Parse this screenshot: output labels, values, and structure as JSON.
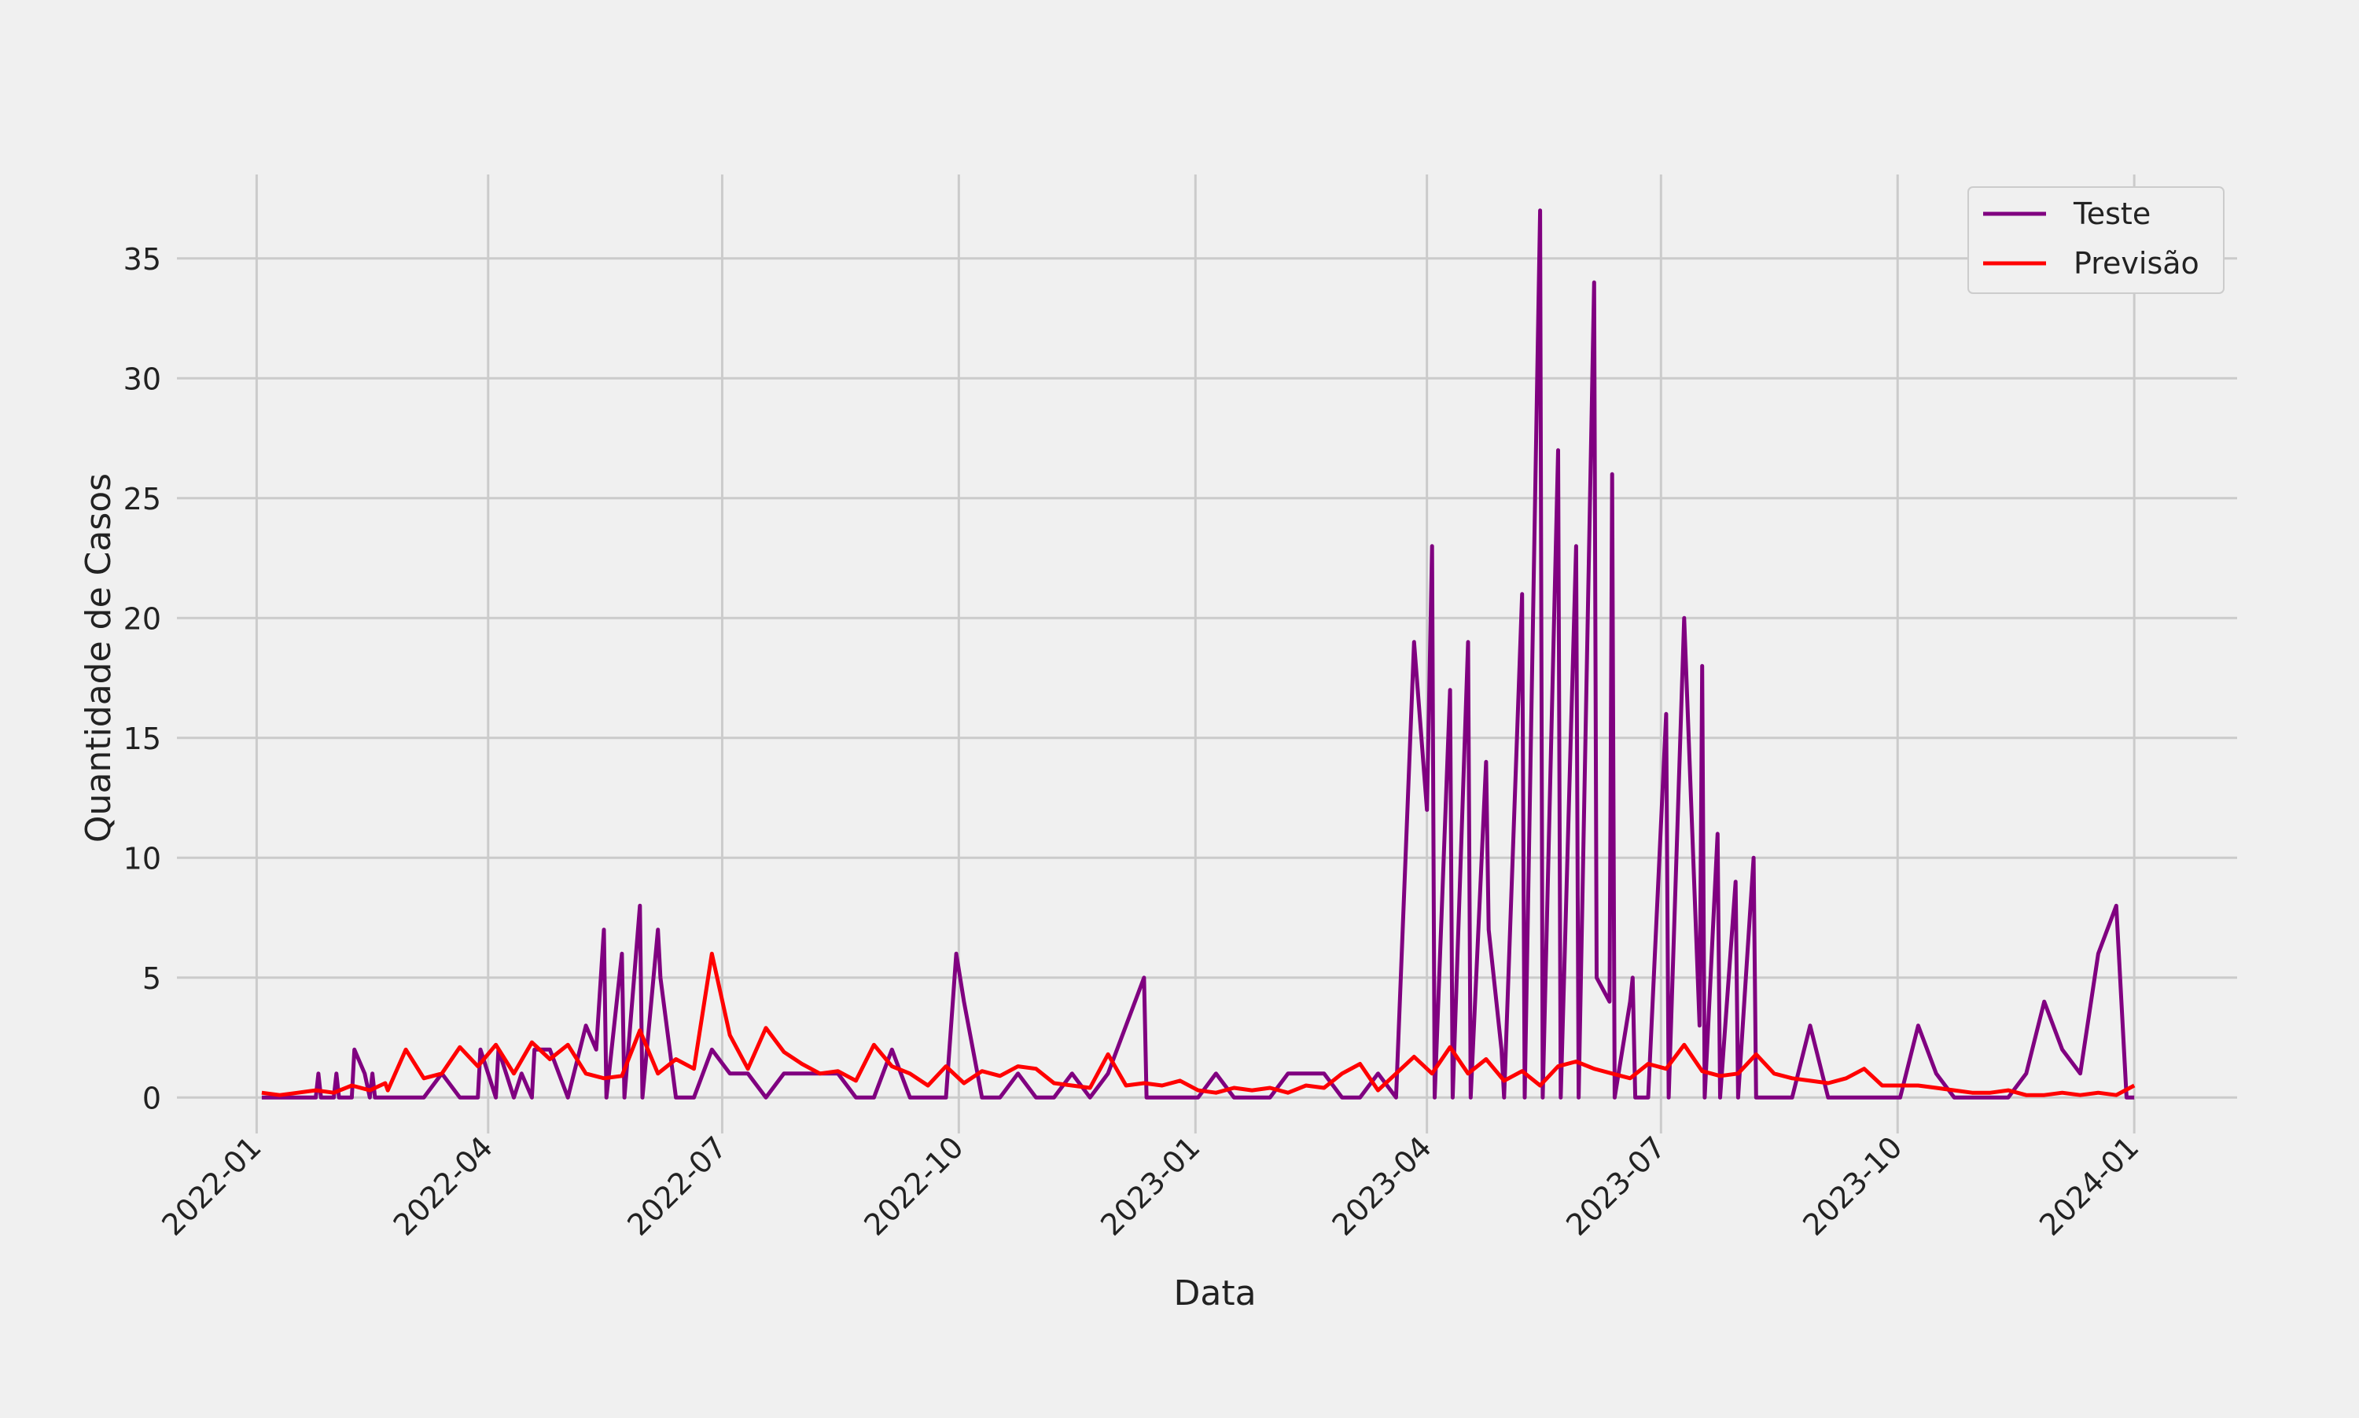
{
  "chart_data": {
    "type": "line",
    "title": "",
    "xlabel": "Data",
    "ylabel": "Quantidade de Casos",
    "x_ticks": [
      "2022-01",
      "2022-04",
      "2022-07",
      "2022-10",
      "2023-01",
      "2023-04",
      "2023-07",
      "2023-10",
      "2024-01"
    ],
    "y_ticks": [
      "0",
      "5",
      "10",
      "15",
      "20",
      "25",
      "30",
      "35"
    ],
    "xlim": [
      "2021-12-01",
      "2024-02-10"
    ],
    "ylim": [
      -1.5,
      38.5
    ],
    "grid": true,
    "legend": {
      "position": "top-right"
    },
    "colors": {
      "Teste": "#800080",
      "Previsão": "#ff0000",
      "background": "#f0f0f0",
      "grid": "#cbcbcb"
    },
    "series": [
      {
        "name": "Teste",
        "color": "#800080",
        "points": [
          [
            "2022-01-03",
            0
          ],
          [
            "2022-01-04",
            0
          ],
          [
            "2022-01-24",
            0
          ],
          [
            "2022-01-25",
            1
          ],
          [
            "2022-01-26",
            0
          ],
          [
            "2022-01-31",
            0
          ],
          [
            "2022-02-01",
            1
          ],
          [
            "2022-02-02",
            0
          ],
          [
            "2022-02-07",
            0
          ],
          [
            "2022-02-08",
            2
          ],
          [
            "2022-02-12",
            1
          ],
          [
            "2022-02-14",
            0
          ],
          [
            "2022-02-15",
            1
          ],
          [
            "2022-02-16",
            0
          ],
          [
            "2022-03-07",
            0
          ],
          [
            "2022-03-14",
            1
          ],
          [
            "2022-03-21",
            0
          ],
          [
            "2022-03-28",
            0
          ],
          [
            "2022-03-29",
            2
          ],
          [
            "2022-04-04",
            0
          ],
          [
            "2022-04-05",
            2
          ],
          [
            "2022-04-11",
            0
          ],
          [
            "2022-04-14",
            1
          ],
          [
            "2022-04-18",
            0
          ],
          [
            "2022-04-19",
            2
          ],
          [
            "2022-04-25",
            2
          ],
          [
            "2022-05-02",
            0
          ],
          [
            "2022-05-09",
            3
          ],
          [
            "2022-05-13",
            2
          ],
          [
            "2022-05-16",
            7
          ],
          [
            "2022-05-17",
            0
          ],
          [
            "2022-05-23",
            6
          ],
          [
            "2022-05-24",
            0
          ],
          [
            "2022-05-30",
            8
          ],
          [
            "2022-05-31",
            0
          ],
          [
            "2022-06-06",
            7
          ],
          [
            "2022-06-07",
            5
          ],
          [
            "2022-06-13",
            0
          ],
          [
            "2022-06-20",
            0
          ],
          [
            "2022-06-27",
            2
          ],
          [
            "2022-07-04",
            1
          ],
          [
            "2022-07-11",
            1
          ],
          [
            "2022-07-18",
            0
          ],
          [
            "2022-07-25",
            1
          ],
          [
            "2022-08-01",
            1
          ],
          [
            "2022-08-08",
            1
          ],
          [
            "2022-08-15",
            1
          ],
          [
            "2022-08-22",
            0
          ],
          [
            "2022-08-29",
            0
          ],
          [
            "2022-09-05",
            2
          ],
          [
            "2022-09-12",
            0
          ],
          [
            "2022-09-19",
            0
          ],
          [
            "2022-09-26",
            0
          ],
          [
            "2022-09-30",
            6
          ],
          [
            "2022-10-03",
            4
          ],
          [
            "2022-10-10",
            0
          ],
          [
            "2022-10-17",
            0
          ],
          [
            "2022-10-24",
            1
          ],
          [
            "2022-10-31",
            0
          ],
          [
            "2022-11-07",
            0
          ],
          [
            "2022-11-14",
            1
          ],
          [
            "2022-11-21",
            0
          ],
          [
            "2022-11-28",
            1
          ],
          [
            "2022-12-05",
            3
          ],
          [
            "2022-12-12",
            5
          ],
          [
            "2022-12-13",
            0
          ],
          [
            "2022-12-19",
            0
          ],
          [
            "2022-12-26",
            0
          ],
          [
            "2023-01-02",
            0
          ],
          [
            "2023-01-09",
            1
          ],
          [
            "2023-01-16",
            0
          ],
          [
            "2023-01-23",
            0
          ],
          [
            "2023-01-30",
            0
          ],
          [
            "2023-02-06",
            1
          ],
          [
            "2023-02-13",
            1
          ],
          [
            "2023-02-20",
            1
          ],
          [
            "2023-02-27",
            0
          ],
          [
            "2023-03-06",
            0
          ],
          [
            "2023-03-13",
            1
          ],
          [
            "2023-03-20",
            0
          ],
          [
            "2023-03-27",
            19
          ],
          [
            "2023-04-01",
            12
          ],
          [
            "2023-04-03",
            23
          ],
          [
            "2023-04-04",
            0
          ],
          [
            "2023-04-10",
            17
          ],
          [
            "2023-04-11",
            0
          ],
          [
            "2023-04-17",
            19
          ],
          [
            "2023-04-18",
            0
          ],
          [
            "2023-04-24",
            14
          ],
          [
            "2023-04-25",
            7
          ],
          [
            "2023-04-30",
            2
          ],
          [
            "2023-05-01",
            0
          ],
          [
            "2023-05-08",
            21
          ],
          [
            "2023-05-09",
            0
          ],
          [
            "2023-05-15",
            37
          ],
          [
            "2023-05-16",
            0
          ],
          [
            "2023-05-22",
            27
          ],
          [
            "2023-05-23",
            0
          ],
          [
            "2023-05-29",
            23
          ],
          [
            "2023-05-30",
            0
          ],
          [
            "2023-06-05",
            34
          ],
          [
            "2023-06-06",
            5
          ],
          [
            "2023-06-11",
            4
          ],
          [
            "2023-06-12",
            26
          ],
          [
            "2023-06-13",
            0
          ],
          [
            "2023-06-19",
            4
          ],
          [
            "2023-06-20",
            5
          ],
          [
            "2023-06-21",
            0
          ],
          [
            "2023-06-26",
            0
          ],
          [
            "2023-07-03",
            16
          ],
          [
            "2023-07-04",
            0
          ],
          [
            "2023-07-10",
            20
          ],
          [
            "2023-07-16",
            3
          ],
          [
            "2023-07-17",
            18
          ],
          [
            "2023-07-18",
            0
          ],
          [
            "2023-07-23",
            11
          ],
          [
            "2023-07-24",
            0
          ],
          [
            "2023-07-30",
            9
          ],
          [
            "2023-07-31",
            0
          ],
          [
            "2023-08-06",
            10
          ],
          [
            "2023-08-07",
            0
          ],
          [
            "2023-08-14",
            0
          ],
          [
            "2023-08-21",
            0
          ],
          [
            "2023-08-28",
            3
          ],
          [
            "2023-09-04",
            0
          ],
          [
            "2023-09-11",
            0
          ],
          [
            "2023-09-18",
            0
          ],
          [
            "2023-09-25",
            0
          ],
          [
            "2023-10-02",
            0
          ],
          [
            "2023-10-09",
            3
          ],
          [
            "2023-10-16",
            1
          ],
          [
            "2023-10-23",
            0
          ],
          [
            "2023-10-30",
            0
          ],
          [
            "2023-11-06",
            0
          ],
          [
            "2023-11-13",
            0
          ],
          [
            "2023-11-20",
            1
          ],
          [
            "2023-11-27",
            4
          ],
          [
            "2023-12-04",
            2
          ],
          [
            "2023-12-11",
            1
          ],
          [
            "2023-12-18",
            6
          ],
          [
            "2023-12-25",
            8
          ],
          [
            "2023-12-29",
            0
          ],
          [
            "2024-01-01",
            0
          ]
        ]
      },
      {
        "name": "Previsão",
        "color": "#ff0000",
        "points": [
          [
            "2022-01-03",
            0.2
          ],
          [
            "2022-01-10",
            0.1
          ],
          [
            "2022-01-17",
            0.2
          ],
          [
            "2022-01-24",
            0.3
          ],
          [
            "2022-01-31",
            0.2
          ],
          [
            "2022-02-07",
            0.5
          ],
          [
            "2022-02-14",
            0.3
          ],
          [
            "2022-02-20",
            0.6
          ],
          [
            "2022-02-21",
            0.3
          ],
          [
            "2022-02-28",
            2.0
          ],
          [
            "2022-03-07",
            0.8
          ],
          [
            "2022-03-14",
            1.0
          ],
          [
            "2022-03-21",
            2.1
          ],
          [
            "2022-03-28",
            1.3
          ],
          [
            "2022-04-04",
            2.2
          ],
          [
            "2022-04-11",
            1.0
          ],
          [
            "2022-04-18",
            2.3
          ],
          [
            "2022-04-25",
            1.6
          ],
          [
            "2022-05-02",
            2.2
          ],
          [
            "2022-05-09",
            1.0
          ],
          [
            "2022-05-16",
            0.8
          ],
          [
            "2022-05-23",
            0.9
          ],
          [
            "2022-05-30",
            2.8
          ],
          [
            "2022-06-06",
            1.0
          ],
          [
            "2022-06-13",
            1.6
          ],
          [
            "2022-06-20",
            1.2
          ],
          [
            "2022-06-27",
            6.0
          ],
          [
            "2022-07-04",
            2.6
          ],
          [
            "2022-07-11",
            1.2
          ],
          [
            "2022-07-18",
            2.9
          ],
          [
            "2022-07-25",
            1.9
          ],
          [
            "2022-08-01",
            1.4
          ],
          [
            "2022-08-08",
            1.0
          ],
          [
            "2022-08-15",
            1.1
          ],
          [
            "2022-08-22",
            0.7
          ],
          [
            "2022-08-29",
            2.2
          ],
          [
            "2022-09-05",
            1.3
          ],
          [
            "2022-09-12",
            1.0
          ],
          [
            "2022-09-19",
            0.5
          ],
          [
            "2022-09-26",
            1.3
          ],
          [
            "2022-10-03",
            0.6
          ],
          [
            "2022-10-10",
            1.1
          ],
          [
            "2022-10-17",
            0.9
          ],
          [
            "2022-10-24",
            1.3
          ],
          [
            "2022-10-31",
            1.2
          ],
          [
            "2022-11-07",
            0.6
          ],
          [
            "2022-11-14",
            0.5
          ],
          [
            "2022-11-21",
            0.4
          ],
          [
            "2022-11-28",
            1.8
          ],
          [
            "2022-12-05",
            0.5
          ],
          [
            "2022-12-12",
            0.6
          ],
          [
            "2022-12-19",
            0.5
          ],
          [
            "2022-12-26",
            0.7
          ],
          [
            "2023-01-02",
            0.3
          ],
          [
            "2023-01-09",
            0.2
          ],
          [
            "2023-01-16",
            0.4
          ],
          [
            "2023-01-23",
            0.3
          ],
          [
            "2023-01-30",
            0.4
          ],
          [
            "2023-02-06",
            0.2
          ],
          [
            "2023-02-13",
            0.5
          ],
          [
            "2023-02-20",
            0.4
          ],
          [
            "2023-02-27",
            1.0
          ],
          [
            "2023-03-06",
            1.4
          ],
          [
            "2023-03-13",
            0.3
          ],
          [
            "2023-03-20",
            1.0
          ],
          [
            "2023-03-27",
            1.7
          ],
          [
            "2023-04-03",
            1.0
          ],
          [
            "2023-04-10",
            2.1
          ],
          [
            "2023-04-17",
            1.0
          ],
          [
            "2023-04-24",
            1.6
          ],
          [
            "2023-05-01",
            0.7
          ],
          [
            "2023-05-08",
            1.1
          ],
          [
            "2023-05-15",
            0.5
          ],
          [
            "2023-05-22",
            1.3
          ],
          [
            "2023-05-29",
            1.5
          ],
          [
            "2023-06-05",
            1.2
          ],
          [
            "2023-06-12",
            1.0
          ],
          [
            "2023-06-19",
            0.8
          ],
          [
            "2023-06-26",
            1.4
          ],
          [
            "2023-07-03",
            1.2
          ],
          [
            "2023-07-10",
            2.2
          ],
          [
            "2023-07-17",
            1.1
          ],
          [
            "2023-07-24",
            0.9
          ],
          [
            "2023-07-31",
            1.0
          ],
          [
            "2023-08-07",
            1.8
          ],
          [
            "2023-08-14",
            1.0
          ],
          [
            "2023-08-21",
            0.8
          ],
          [
            "2023-08-28",
            0.7
          ],
          [
            "2023-09-04",
            0.6
          ],
          [
            "2023-09-11",
            0.8
          ],
          [
            "2023-09-18",
            1.2
          ],
          [
            "2023-09-25",
            0.5
          ],
          [
            "2023-10-02",
            0.5
          ],
          [
            "2023-10-09",
            0.5
          ],
          [
            "2023-10-16",
            0.4
          ],
          [
            "2023-10-23",
            0.3
          ],
          [
            "2023-10-30",
            0.2
          ],
          [
            "2023-11-06",
            0.2
          ],
          [
            "2023-11-13",
            0.3
          ],
          [
            "2023-11-20",
            0.1
          ],
          [
            "2023-11-27",
            0.1
          ],
          [
            "2023-12-04",
            0.2
          ],
          [
            "2023-12-11",
            0.1
          ],
          [
            "2023-12-18",
            0.2
          ],
          [
            "2023-12-25",
            0.1
          ],
          [
            "2024-01-01",
            0.5
          ]
        ]
      }
    ]
  }
}
